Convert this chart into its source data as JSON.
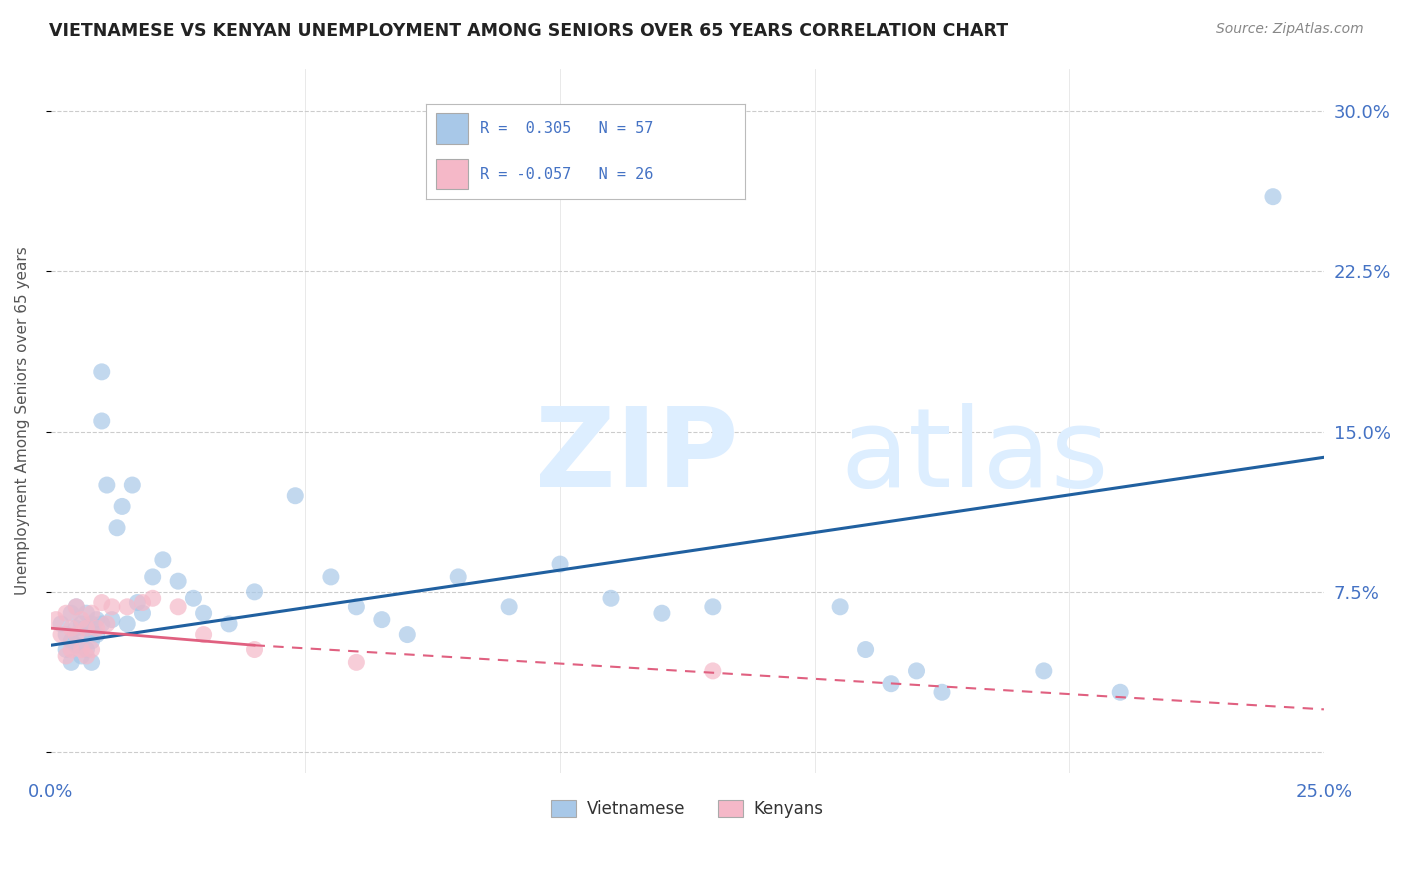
{
  "title": "VIETNAMESE VS KENYAN UNEMPLOYMENT AMONG SENIORS OVER 65 YEARS CORRELATION CHART",
  "source": "Source: ZipAtlas.com",
  "ylabel": "Unemployment Among Seniors over 65 years",
  "xlim": [
    0,
    0.25
  ],
  "ylim": [
    -0.01,
    0.32
  ],
  "ytick_vals": [
    0.0,
    0.075,
    0.15,
    0.225,
    0.3
  ],
  "ytick_labels": [
    "",
    "7.5%",
    "15.0%",
    "22.5%",
    "30.0%"
  ],
  "xtick_vals": [
    0.0,
    0.05,
    0.1,
    0.15,
    0.2,
    0.25
  ],
  "xtick_labels": [
    "0.0%",
    "",
    "",
    "",
    "",
    "25.0%"
  ],
  "blue_color": "#a8c8e8",
  "pink_color": "#f5b8c8",
  "blue_line_color": "#2060a0",
  "pink_line_color": "#e06080",
  "watermark_color": "#ddeeff",
  "background_color": "#ffffff",
  "grid_color": "#cccccc",
  "tick_color": "#4472c4",
  "title_color": "#222222",
  "source_color": "#888888",
  "label_color": "#555555",
  "viet_x": [
    0.002,
    0.003,
    0.003,
    0.004,
    0.004,
    0.004,
    0.005,
    0.005,
    0.005,
    0.006,
    0.006,
    0.006,
    0.007,
    0.007,
    0.007,
    0.008,
    0.008,
    0.008,
    0.009,
    0.009,
    0.01,
    0.01,
    0.01,
    0.011,
    0.012,
    0.013,
    0.014,
    0.015,
    0.016,
    0.017,
    0.018,
    0.02,
    0.022,
    0.025,
    0.028,
    0.03,
    0.035,
    0.04,
    0.048,
    0.055,
    0.06,
    0.065,
    0.07,
    0.08,
    0.09,
    0.1,
    0.11,
    0.12,
    0.13,
    0.155,
    0.16,
    0.165,
    0.17,
    0.175,
    0.195,
    0.21,
    0.24
  ],
  "viet_y": [
    0.06,
    0.055,
    0.048,
    0.065,
    0.052,
    0.042,
    0.068,
    0.058,
    0.05,
    0.06,
    0.055,
    0.045,
    0.065,
    0.058,
    0.048,
    0.06,
    0.052,
    0.042,
    0.062,
    0.055,
    0.178,
    0.155,
    0.06,
    0.125,
    0.062,
    0.105,
    0.115,
    0.06,
    0.125,
    0.07,
    0.065,
    0.082,
    0.09,
    0.08,
    0.072,
    0.065,
    0.06,
    0.075,
    0.12,
    0.082,
    0.068,
    0.062,
    0.055,
    0.082,
    0.068,
    0.088,
    0.072,
    0.065,
    0.068,
    0.068,
    0.048,
    0.032,
    0.038,
    0.028,
    0.038,
    0.028,
    0.26
  ],
  "ken_x": [
    0.001,
    0.002,
    0.003,
    0.003,
    0.004,
    0.004,
    0.005,
    0.005,
    0.006,
    0.006,
    0.007,
    0.007,
    0.008,
    0.008,
    0.009,
    0.01,
    0.011,
    0.012,
    0.015,
    0.018,
    0.02,
    0.025,
    0.03,
    0.04,
    0.06,
    0.13
  ],
  "ken_y": [
    0.062,
    0.055,
    0.065,
    0.045,
    0.058,
    0.048,
    0.068,
    0.055,
    0.062,
    0.048,
    0.058,
    0.045,
    0.065,
    0.048,
    0.058,
    0.07,
    0.06,
    0.068,
    0.068,
    0.07,
    0.072,
    0.068,
    0.055,
    0.048,
    0.042,
    0.038
  ],
  "viet_trend": [
    0.0,
    0.25,
    0.05,
    0.138
  ],
  "ken_trend_solid": [
    0.0,
    0.04,
    0.058,
    0.05
  ],
  "ken_trend_dash": [
    0.04,
    0.25,
    0.05,
    0.02
  ]
}
